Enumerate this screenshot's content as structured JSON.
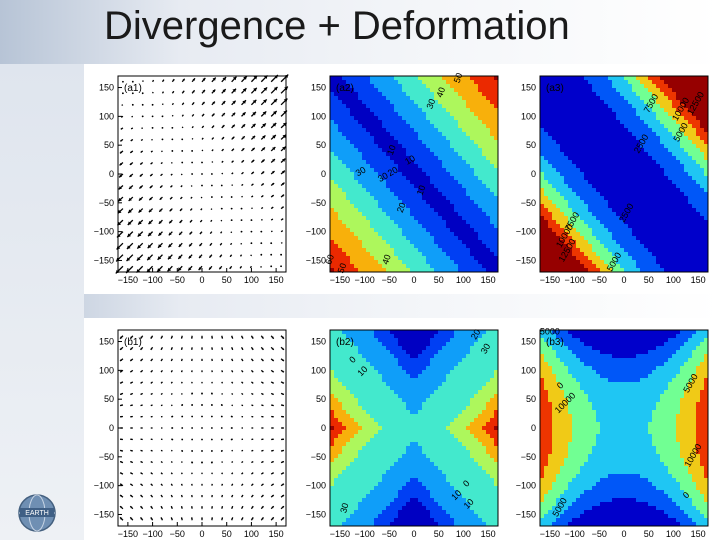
{
  "slide": {
    "title": "Divergence + Deformation"
  },
  "panels": {
    "a1": {
      "label": "(a1)"
    },
    "a2": {
      "label": "(a2)",
      "contour_labels": [
        "50",
        "40",
        "30",
        "10",
        "10",
        "30",
        "30",
        "20",
        "10",
        "20",
        "40",
        "60",
        "50"
      ]
    },
    "a3": {
      "label": "(a3)",
      "contour_labels": [
        "12500",
        "10000",
        "7500",
        "5000",
        "2500",
        "2500",
        "7500",
        "10000",
        "12500",
        "5000"
      ]
    },
    "b1": {
      "label": "(b1)"
    },
    "b2": {
      "label": "(b2)",
      "contour_labels": [
        "20",
        "30",
        "0",
        "10",
        "10",
        "0",
        "10",
        "30"
      ]
    },
    "b3": {
      "label": "(b3)",
      "contour_labels": [
        "5000",
        "0",
        "10000",
        "5000",
        "10000",
        "0",
        "5000"
      ]
    }
  },
  "axis": {
    "y_ticks": [
      "150",
      "100",
      "50",
      "0",
      "−50",
      "−100",
      "−150"
    ],
    "x_ticks": [
      "−150",
      "−100",
      "−50",
      "0",
      "50",
      "100",
      "150"
    ]
  },
  "chart_data": [
    {
      "type": "heatmap",
      "title": "(a1)",
      "xlim": [
        -170,
        170
      ],
      "ylim": [
        -170,
        170
      ],
      "note": "vector field: divergent + deformation flow"
    },
    {
      "type": "heatmap",
      "title": "(a2)",
      "xlim": [
        -170,
        170
      ],
      "ylim": [
        -170,
        170
      ],
      "levels": [
        0,
        10,
        20,
        30,
        40,
        50,
        60
      ]
    },
    {
      "type": "heatmap",
      "title": "(a3)",
      "xlim": [
        -170,
        170
      ],
      "ylim": [
        -170,
        170
      ],
      "levels": [
        0,
        2500,
        5000,
        7500,
        10000,
        12500
      ]
    },
    {
      "type": "heatmap",
      "title": "(b1)",
      "xlim": [
        -170,
        170
      ],
      "ylim": [
        -170,
        170
      ],
      "note": "vector field: deformation flow"
    },
    {
      "type": "heatmap",
      "title": "(b2)",
      "xlim": [
        -170,
        170
      ],
      "ylim": [
        -170,
        170
      ],
      "levels": [
        0,
        10,
        20,
        30
      ]
    },
    {
      "type": "heatmap",
      "title": "(b3)",
      "xlim": [
        -170,
        170
      ],
      "ylim": [
        -170,
        170
      ],
      "levels": [
        0,
        5000,
        10000
      ]
    }
  ]
}
